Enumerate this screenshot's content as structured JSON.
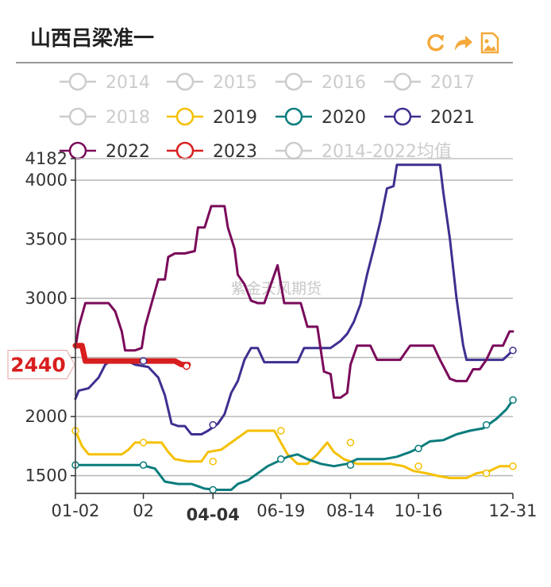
{
  "title": "山西吕梁准一",
  "toolbar": {
    "icons": [
      "refresh-icon",
      "share-icon",
      "save-image-icon"
    ],
    "color": "#f4a93b"
  },
  "watermark": "紫金天风期货",
  "chart_data": {
    "type": "line",
    "title": "山西吕梁准一",
    "x_ticks": [
      "01-02",
      "02",
      "04-04",
      "06-19",
      "08-14",
      "10-16",
      "12-31"
    ],
    "highlight_x": "04-04",
    "y_ticks": [
      1500,
      2000,
      2500,
      3000,
      3500,
      4000,
      4182
    ],
    "ylim": [
      1350,
      4182
    ],
    "highlight_value": "2440",
    "legend": [
      {
        "name": "2014",
        "color": "#cccccc",
        "active": false
      },
      {
        "name": "2015",
        "color": "#cccccc",
        "active": false
      },
      {
        "name": "2016",
        "color": "#cccccc",
        "active": false
      },
      {
        "name": "2017",
        "color": "#cccccc",
        "active": false
      },
      {
        "name": "2018",
        "color": "#cccccc",
        "active": false
      },
      {
        "name": "2019",
        "color": "#f5c000",
        "active": true
      },
      {
        "name": "2020",
        "color": "#0a7c7c",
        "active": true
      },
      {
        "name": "2021",
        "color": "#3d3090",
        "active": true
      },
      {
        "name": "2022",
        "color": "#7a0a5a",
        "active": true
      },
      {
        "name": "2023",
        "color": "#d81e1e",
        "active": true
      },
      {
        "name": "2014-2022均值",
        "color": "#cccccc",
        "active": false
      }
    ],
    "series": [
      {
        "name": "2019",
        "color": "#f5c000",
        "width": 3,
        "points": [
          [
            0,
            1880
          ],
          [
            4,
            1750
          ],
          [
            8,
            1680
          ],
          [
            14,
            1680
          ],
          [
            20,
            1680
          ],
          [
            28,
            1680
          ],
          [
            32,
            1720
          ],
          [
            36,
            1780
          ],
          [
            44,
            1780
          ],
          [
            52,
            1780
          ],
          [
            56,
            1700
          ],
          [
            60,
            1640
          ],
          [
            68,
            1620
          ],
          [
            76,
            1620
          ],
          [
            80,
            1700
          ],
          [
            88,
            1720
          ],
          [
            96,
            1800
          ],
          [
            104,
            1880
          ],
          [
            112,
            1880
          ],
          [
            120,
            1880
          ],
          [
            124,
            1780
          ],
          [
            128,
            1680
          ],
          [
            134,
            1600
          ],
          [
            140,
            1600
          ],
          [
            146,
            1680
          ],
          [
            152,
            1780
          ],
          [
            156,
            1700
          ],
          [
            162,
            1640
          ],
          [
            170,
            1600
          ],
          [
            180,
            1600
          ],
          [
            190,
            1600
          ],
          [
            198,
            1580
          ],
          [
            204,
            1540
          ],
          [
            212,
            1520
          ],
          [
            218,
            1500
          ],
          [
            226,
            1480
          ],
          [
            236,
            1480
          ],
          [
            242,
            1520
          ],
          [
            250,
            1540
          ],
          [
            256,
            1580
          ],
          [
            264,
            1580
          ]
        ]
      },
      {
        "name": "2020",
        "color": "#0a7c7c",
        "width": 3,
        "points": [
          [
            0,
            1590
          ],
          [
            10,
            1590
          ],
          [
            20,
            1590
          ],
          [
            30,
            1590
          ],
          [
            40,
            1590
          ],
          [
            48,
            1560
          ],
          [
            54,
            1450
          ],
          [
            62,
            1430
          ],
          [
            70,
            1430
          ],
          [
            78,
            1390
          ],
          [
            86,
            1380
          ],
          [
            94,
            1380
          ],
          [
            98,
            1430
          ],
          [
            104,
            1460
          ],
          [
            110,
            1520
          ],
          [
            116,
            1580
          ],
          [
            122,
            1620
          ],
          [
            128,
            1660
          ],
          [
            134,
            1680
          ],
          [
            140,
            1640
          ],
          [
            148,
            1600
          ],
          [
            156,
            1580
          ],
          [
            164,
            1600
          ],
          [
            170,
            1640
          ],
          [
            178,
            1640
          ],
          [
            186,
            1640
          ],
          [
            194,
            1660
          ],
          [
            202,
            1700
          ],
          [
            208,
            1740
          ],
          [
            214,
            1790
          ],
          [
            222,
            1800
          ],
          [
            230,
            1850
          ],
          [
            238,
            1880
          ],
          [
            246,
            1900
          ],
          [
            254,
            1980
          ],
          [
            260,
            2060
          ],
          [
            264,
            2140
          ]
        ]
      },
      {
        "name": "2021",
        "color": "#3d3090",
        "width": 3,
        "points": [
          [
            0,
            2150
          ],
          [
            2,
            2220
          ],
          [
            8,
            2240
          ],
          [
            14,
            2330
          ],
          [
            18,
            2440
          ],
          [
            22,
            2480
          ],
          [
            30,
            2480
          ],
          [
            36,
            2440
          ],
          [
            44,
            2420
          ],
          [
            50,
            2330
          ],
          [
            54,
            2180
          ],
          [
            58,
            1940
          ],
          [
            62,
            1920
          ],
          [
            66,
            1920
          ],
          [
            70,
            1850
          ],
          [
            76,
            1850
          ],
          [
            80,
            1880
          ],
          [
            86,
            1940
          ],
          [
            90,
            2020
          ],
          [
            94,
            2200
          ],
          [
            98,
            2300
          ],
          [
            102,
            2480
          ],
          [
            106,
            2580
          ],
          [
            110,
            2580
          ],
          [
            114,
            2460
          ],
          [
            120,
            2460
          ],
          [
            126,
            2460
          ],
          [
            134,
            2460
          ],
          [
            138,
            2580
          ],
          [
            146,
            2580
          ],
          [
            154,
            2580
          ],
          [
            160,
            2640
          ],
          [
            164,
            2700
          ],
          [
            168,
            2800
          ],
          [
            172,
            2950
          ],
          [
            176,
            3200
          ],
          [
            180,
            3420
          ],
          [
            184,
            3650
          ],
          [
            188,
            3930
          ],
          [
            192,
            3950
          ],
          [
            194,
            4130
          ],
          [
            200,
            4130
          ],
          [
            206,
            4130
          ],
          [
            212,
            4130
          ],
          [
            220,
            4130
          ],
          [
            222,
            3900
          ],
          [
            226,
            3500
          ],
          [
            230,
            3000
          ],
          [
            234,
            2600
          ],
          [
            236,
            2480
          ],
          [
            240,
            2480
          ],
          [
            246,
            2480
          ],
          [
            252,
            2480
          ],
          [
            258,
            2480
          ],
          [
            264,
            2560
          ]
        ]
      },
      {
        "name": "2022",
        "color": "#7a0a5a",
        "width": 3,
        "points": [
          [
            0,
            2580
          ],
          [
            2,
            2760
          ],
          [
            6,
            2960
          ],
          [
            12,
            2960
          ],
          [
            20,
            2960
          ],
          [
            24,
            2890
          ],
          [
            28,
            2720
          ],
          [
            30,
            2560
          ],
          [
            36,
            2560
          ],
          [
            40,
            2580
          ],
          [
            42,
            2760
          ],
          [
            46,
            2960
          ],
          [
            50,
            3160
          ],
          [
            54,
            3160
          ],
          [
            56,
            3350
          ],
          [
            60,
            3380
          ],
          [
            66,
            3380
          ],
          [
            72,
            3400
          ],
          [
            74,
            3600
          ],
          [
            78,
            3600
          ],
          [
            82,
            3780
          ],
          [
            86,
            3780
          ],
          [
            90,
            3780
          ],
          [
            92,
            3600
          ],
          [
            96,
            3420
          ],
          [
            98,
            3200
          ],
          [
            102,
            3120
          ],
          [
            106,
            2980
          ],
          [
            110,
            2960
          ],
          [
            114,
            2960
          ],
          [
            118,
            3120
          ],
          [
            122,
            3280
          ],
          [
            126,
            2960
          ],
          [
            132,
            2960
          ],
          [
            136,
            2960
          ],
          [
            140,
            2760
          ],
          [
            146,
            2760
          ],
          [
            150,
            2380
          ],
          [
            154,
            2360
          ],
          [
            156,
            2160
          ],
          [
            160,
            2160
          ],
          [
            164,
            2200
          ],
          [
            166,
            2440
          ],
          [
            170,
            2600
          ],
          [
            174,
            2600
          ],
          [
            178,
            2600
          ],
          [
            182,
            2480
          ],
          [
            188,
            2480
          ],
          [
            196,
            2480
          ],
          [
            202,
            2600
          ],
          [
            210,
            2600
          ],
          [
            216,
            2600
          ],
          [
            220,
            2480
          ],
          [
            226,
            2320
          ],
          [
            230,
            2300
          ],
          [
            236,
            2300
          ],
          [
            240,
            2400
          ],
          [
            244,
            2400
          ],
          [
            248,
            2480
          ],
          [
            252,
            2600
          ],
          [
            258,
            2600
          ],
          [
            262,
            2720
          ],
          [
            264,
            2720
          ]
        ]
      },
      {
        "name": "2023",
        "color": "#d81e1e",
        "width": 7,
        "points": [
          [
            0,
            2600
          ],
          [
            4,
            2600
          ],
          [
            6,
            2470
          ],
          [
            10,
            2470
          ],
          [
            20,
            2470
          ],
          [
            30,
            2470
          ],
          [
            40,
            2470
          ],
          [
            50,
            2470
          ],
          [
            60,
            2470
          ],
          [
            64,
            2440
          ],
          [
            68,
            2440
          ]
        ]
      }
    ],
    "markers": [
      {
        "series": "2019",
        "points": [
          [
            0,
            1880
          ],
          [
            41,
            1780
          ],
          [
            83,
            1620
          ],
          [
            124,
            1880
          ],
          [
            166,
            1780
          ],
          [
            207,
            1580
          ],
          [
            248,
            1520
          ],
          [
            264,
            1580
          ]
        ]
      },
      {
        "series": "2020",
        "points": [
          [
            0,
            1590
          ],
          [
            41,
            1590
          ],
          [
            83,
            1380
          ],
          [
            124,
            1640
          ],
          [
            166,
            1590
          ],
          [
            207,
            1730
          ],
          [
            248,
            1930
          ],
          [
            264,
            2140
          ]
        ]
      },
      {
        "series": "2021",
        "points": [
          [
            41,
            2470
          ],
          [
            83,
            1930
          ],
          [
            264,
            2560
          ]
        ]
      }
    ]
  }
}
